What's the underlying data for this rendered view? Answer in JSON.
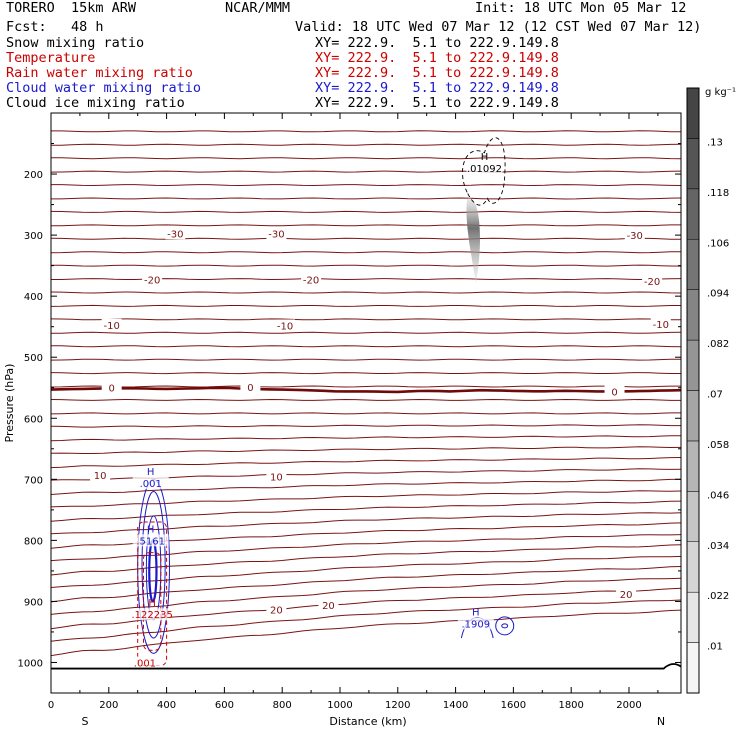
{
  "header": {
    "model": "TORERO  15km ARW",
    "org": "NCAR/MMM",
    "init": "Init: 18 UTC Mon 05 Mar 12",
    "fcst": "Fcst:   48 h",
    "valid": "Valid: 18 UTC Wed 07 Mar 12 (12 CST Wed 07 Mar 12)",
    "fields": [
      {
        "name": "Snow mixing ratio",
        "xy": "XY= 222.9.  5.1 to 222.9.149.8",
        "color": "#000000"
      },
      {
        "name": "Temperature",
        "xy": "XY= 222.9.  5.1 to 222.9.149.8",
        "color": "#cc0000"
      },
      {
        "name": "Rain water mixing ratio",
        "xy": "XY= 222.9.  5.1 to 222.9.149.8",
        "color": "#cc0000"
      },
      {
        "name": "Cloud water mixing ratio",
        "xy": "XY= 222.9.  5.1 to 222.9.149.8",
        "color": "#1a1acc"
      },
      {
        "name": "Cloud ice mixing ratio",
        "xy": "XY= 222.9.  5.1 to 222.9.149.8",
        "color": "#000000"
      }
    ]
  },
  "chart_data": {
    "type": "contour",
    "xlabel": "Distance (km)",
    "ylabel": "Pressure (hPa)",
    "xlim": [
      0,
      2180
    ],
    "ylim": [
      1050,
      100
    ],
    "x_ticks": [
      0,
      200,
      400,
      600,
      800,
      1000,
      1200,
      1400,
      1600,
      1800,
      2000
    ],
    "y_ticks": [
      200,
      300,
      400,
      500,
      600,
      700,
      800,
      900,
      1000
    ],
    "x_end_labels": {
      "left": "S",
      "right": "N"
    },
    "temperature_contours": [
      {
        "value": -30,
        "p": [
          318,
          318,
          318,
          318,
          318,
          318,
          318,
          318,
          318,
          318,
          318,
          318,
          318,
          318,
          318,
          318,
          318,
          318,
          318,
          318,
          318,
          318,
          318
        ]
      },
      {
        "value": -20,
        "p": [
          385,
          385,
          385,
          385,
          385,
          385,
          385,
          385,
          385,
          385,
          385,
          385,
          385,
          385,
          385,
          385,
          385,
          385,
          385,
          385,
          385,
          385,
          385
        ]
      },
      {
        "value": -10,
        "p": [
          463,
          463,
          463,
          463,
          463,
          463,
          463,
          463,
          463,
          463,
          463,
          463,
          463,
          463,
          463,
          463,
          463,
          463,
          463,
          463,
          463,
          463,
          463
        ]
      },
      {
        "value": 0,
        "p": [
          553,
          552,
          551,
          551,
          552,
          551,
          550,
          552,
          553,
          554,
          556,
          556,
          557,
          555,
          556,
          554,
          555,
          556,
          555,
          556,
          556,
          555,
          554
        ]
      },
      {
        "value": 10,
        "p": [
          681,
          690,
          692,
          697,
          698,
          701,
          702,
          703,
          704,
          705,
          707,
          708,
          709,
          710,
          711,
          712,
          714,
          716,
          717,
          718,
          719,
          720,
          720
        ]
      },
      {
        "value": 20,
        "p": [
          938,
          932,
          931,
          925,
          921,
          916,
          913,
          909,
          906,
          902,
          898,
          895,
          892,
          890,
          888,
          886,
          884,
          882,
          879,
          877,
          876,
          874,
          872
        ]
      }
    ],
    "isotherm_spacing_hPa": 22,
    "isotherm_top_hPa": 130,
    "isotherm_bottom_hPa": 990,
    "contour_label_positions": [
      {
        "label": "-30",
        "x": 430,
        "p": 297
      },
      {
        "label": "-30",
        "x": 780,
        "p": 297
      },
      {
        "label": "-30",
        "x": 2020,
        "p": 300
      },
      {
        "label": "-20",
        "x": 350,
        "p": 373
      },
      {
        "label": "-20",
        "x": 900,
        "p": 373
      },
      {
        "label": "-20",
        "x": 2080,
        "p": 375
      },
      {
        "label": "-10",
        "x": 210,
        "p": 447
      },
      {
        "label": "-10",
        "x": 810,
        "p": 448
      },
      {
        "label": "-10",
        "x": 2110,
        "p": 446
      },
      {
        "label": "0",
        "x": 210,
        "p": 550
      },
      {
        "label": "0",
        "x": 690,
        "p": 549
      },
      {
        "label": "0",
        "x": 1950,
        "p": 556
      },
      {
        "label": "10",
        "x": 170,
        "p": 693
      },
      {
        "label": "10",
        "x": 780,
        "p": 695
      },
      {
        "label": "20",
        "x": 780,
        "p": 913
      },
      {
        "label": "20",
        "x": 960,
        "p": 906
      },
      {
        "label": "20",
        "x": 1990,
        "p": 888
      }
    ],
    "maxima_labels": [
      {
        "label": "H",
        "value": ".01092",
        "x": 1500,
        "p": 190,
        "color": "#000000"
      },
      {
        "label": "H",
        "value": ".001",
        "x": 345,
        "p": 706,
        "color": "#1a1acc"
      },
      {
        "label": "H",
        "value": ".5161",
        "x": 345,
        "p": 800,
        "color": "#1a1acc"
      },
      {
        "label": "H",
        "value": ".122235",
        "x": 350,
        "p": 921,
        "color": "#cc0000"
      },
      {
        "label": "H",
        "value": ".1909",
        "x": 1470,
        "p": 936,
        "color": "#1a1acc"
      },
      {
        "label": "",
        "value": ".001",
        "x": 325,
        "p": 1000,
        "color": "#cc0000"
      }
    ],
    "colorbar": {
      "unit": "g kg⁻¹",
      "ticks": [
        ".01",
        ".022",
        ".034",
        ".046",
        ".058",
        ".07",
        ".082",
        ".094",
        ".106",
        ".118",
        ".13"
      ]
    },
    "surface_pressure_hPa": 1010
  }
}
